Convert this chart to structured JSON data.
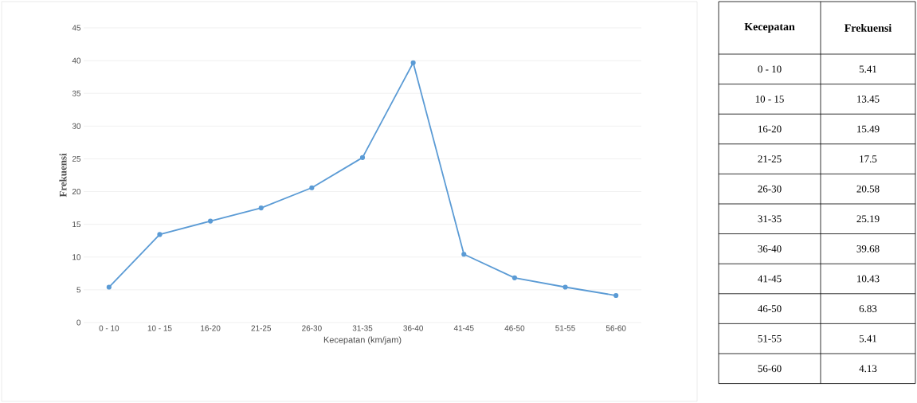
{
  "chart_data": [
    {
      "type": "line",
      "xlabel": "Kecepatan (km/jam)",
      "ylabel": "Frekuensi",
      "categories": [
        "0 - 10",
        "10 - 15",
        "16-20",
        "21-25",
        "26-30",
        "31-35",
        "36-40",
        "41-45",
        "46-50",
        "51-55",
        "56-60"
      ],
      "series": [
        {
          "color": "#5b9bd5",
          "values": [
            5.41,
            13.45,
            15.49,
            17.5,
            20.58,
            25.19,
            39.68,
            10.43,
            6.83,
            5.41,
            4.13
          ]
        }
      ],
      "ylim": [
        0,
        45
      ],
      "yticks": [
        0,
        5,
        10,
        15,
        20,
        25,
        30,
        35,
        40,
        45
      ],
      "grid": "y",
      "marker": "circle",
      "line_style": "solid"
    },
    {
      "type": "other",
      "annotations": [
        "Kecepatan",
        "Frekuensi",
        "0 - 10",
        "5.41",
        "10 - 15",
        "13.45",
        "16-20",
        "15.49",
        "21-25",
        "17.5",
        "26-30",
        "20.58",
        "31-35",
        "25.19",
        "36-40",
        "39.68",
        "41-45",
        "10.43",
        "46-50",
        "6.83",
        "51-55",
        "5.41",
        "56-60",
        "4.13"
      ]
    }
  ]
}
